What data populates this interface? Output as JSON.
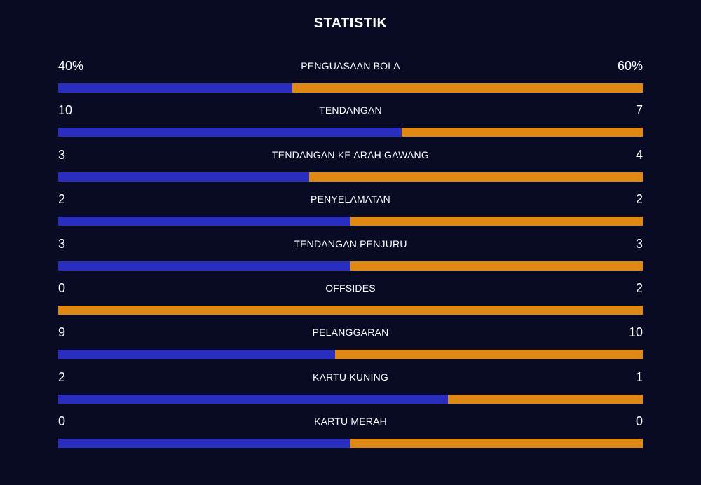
{
  "title": "STATISTIK",
  "colors": {
    "background": "#090a24",
    "home_bar": "#2a2ec0",
    "away_bar": "#e08814",
    "text": "#ffffff"
  },
  "stats": [
    {
      "label": "PENGUASAAN BOLA",
      "left": "40%",
      "right": "60%",
      "home_share": 0.4
    },
    {
      "label": "TENDANGAN",
      "left": "10",
      "right": "7",
      "home_share": 0.588
    },
    {
      "label": "TENDANGAN KE ARAH GAWANG",
      "left": "3",
      "right": "4",
      "home_share": 0.429
    },
    {
      "label": "PENYELAMATAN",
      "left": "2",
      "right": "2",
      "home_share": 0.5
    },
    {
      "label": "TENDANGAN PENJURU",
      "left": "3",
      "right": "3",
      "home_share": 0.5
    },
    {
      "label": "OFFSIDES",
      "left": "0",
      "right": "2",
      "home_share": 0.0
    },
    {
      "label": "PELANGGARAN",
      "left": "9",
      "right": "10",
      "home_share": 0.474
    },
    {
      "label": "KARTU KUNING",
      "left": "2",
      "right": "1",
      "home_share": 0.667
    },
    {
      "label": "KARTU MERAH",
      "left": "0",
      "right": "0",
      "home_share": 0.5
    }
  ]
}
